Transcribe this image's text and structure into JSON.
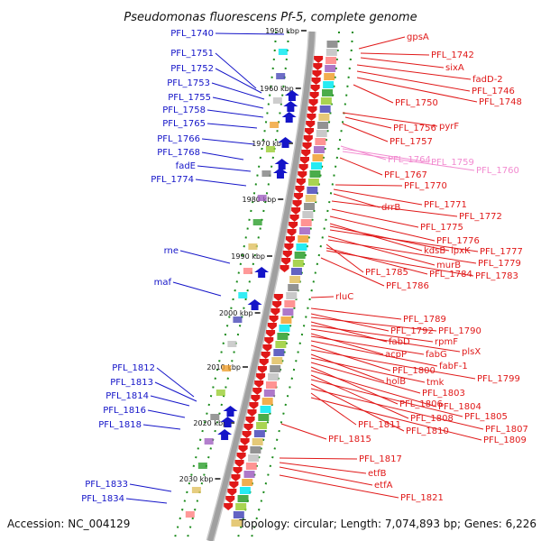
{
  "title": "Pseudomonas fluorescens Pf-5, complete genome",
  "footer": {
    "accession": "Accession: NC_004129",
    "summary": "Topology: circular; Length: 7,074,893 bp; Genes: 6,226"
  },
  "ticks": [
    "1950 kbp",
    "1960 kbp",
    "1970 kbp",
    "1980 kbp",
    "1990 kbp",
    "2000 kbp",
    "2010 kbp",
    "2020 kbp",
    "2030 kbp"
  ],
  "left_genes": [
    "PFL_1740",
    "PFL_1751",
    "PFL_1752",
    "PFL_1753",
    "PFL_1755",
    "PFL_1758",
    "PFL_1765",
    "PFL_1766",
    "PFL_1768",
    "fadE",
    "PFL_1774",
    "rne",
    "maf",
    "PFL_1812",
    "PFL_1813",
    "PFL_1814",
    "PFL_1816",
    "PFL_1818",
    "PFL_1833",
    "PFL_1834"
  ],
  "right_genes": [
    "gpsA",
    "PFL_1742",
    "sixA",
    "fadD-2",
    "PFL_1746",
    "PFL_1748",
    "PFL_1750",
    "pyrF",
    "PFL_1756",
    "PFL_1757",
    "PFL_1764",
    "PFL_1759",
    "PFL_1760",
    "PFL_1767",
    "PFL_1770",
    "PFL_1771",
    "drrB",
    "PFL_1772",
    "PFL_1775",
    "PFL_1776",
    "kdsB",
    "lpxK",
    "PFL_1777",
    "murB",
    "PFL_1779",
    "PFL_1785",
    "PFL_1784",
    "PFL_1783",
    "PFL_1786",
    "rluC",
    "PFL_1789",
    "PFL_1792",
    "PFL_1790",
    "fabD",
    "rpmF",
    "plsX",
    "acpP",
    "fabG",
    "fabF-1",
    "PFL_1800",
    "PFL_1799",
    "holB",
    "tmk",
    "PFL_1803",
    "PFL_1806",
    "PFL_1804",
    "PFL_1808",
    "PFL_1805",
    "PFL_1810",
    "PFL_1807",
    "PFL_1811",
    "PFL_1809",
    "PFL_1815",
    "PFL_1817",
    "etfB",
    "etfA",
    "PFL_1821"
  ],
  "colors": {
    "forward": "#1414c8",
    "reverse": "#e01818",
    "pseudo": "#f28bd0",
    "backbone": "#a0a0a0",
    "tick_marks": "#1a8a1a"
  }
}
